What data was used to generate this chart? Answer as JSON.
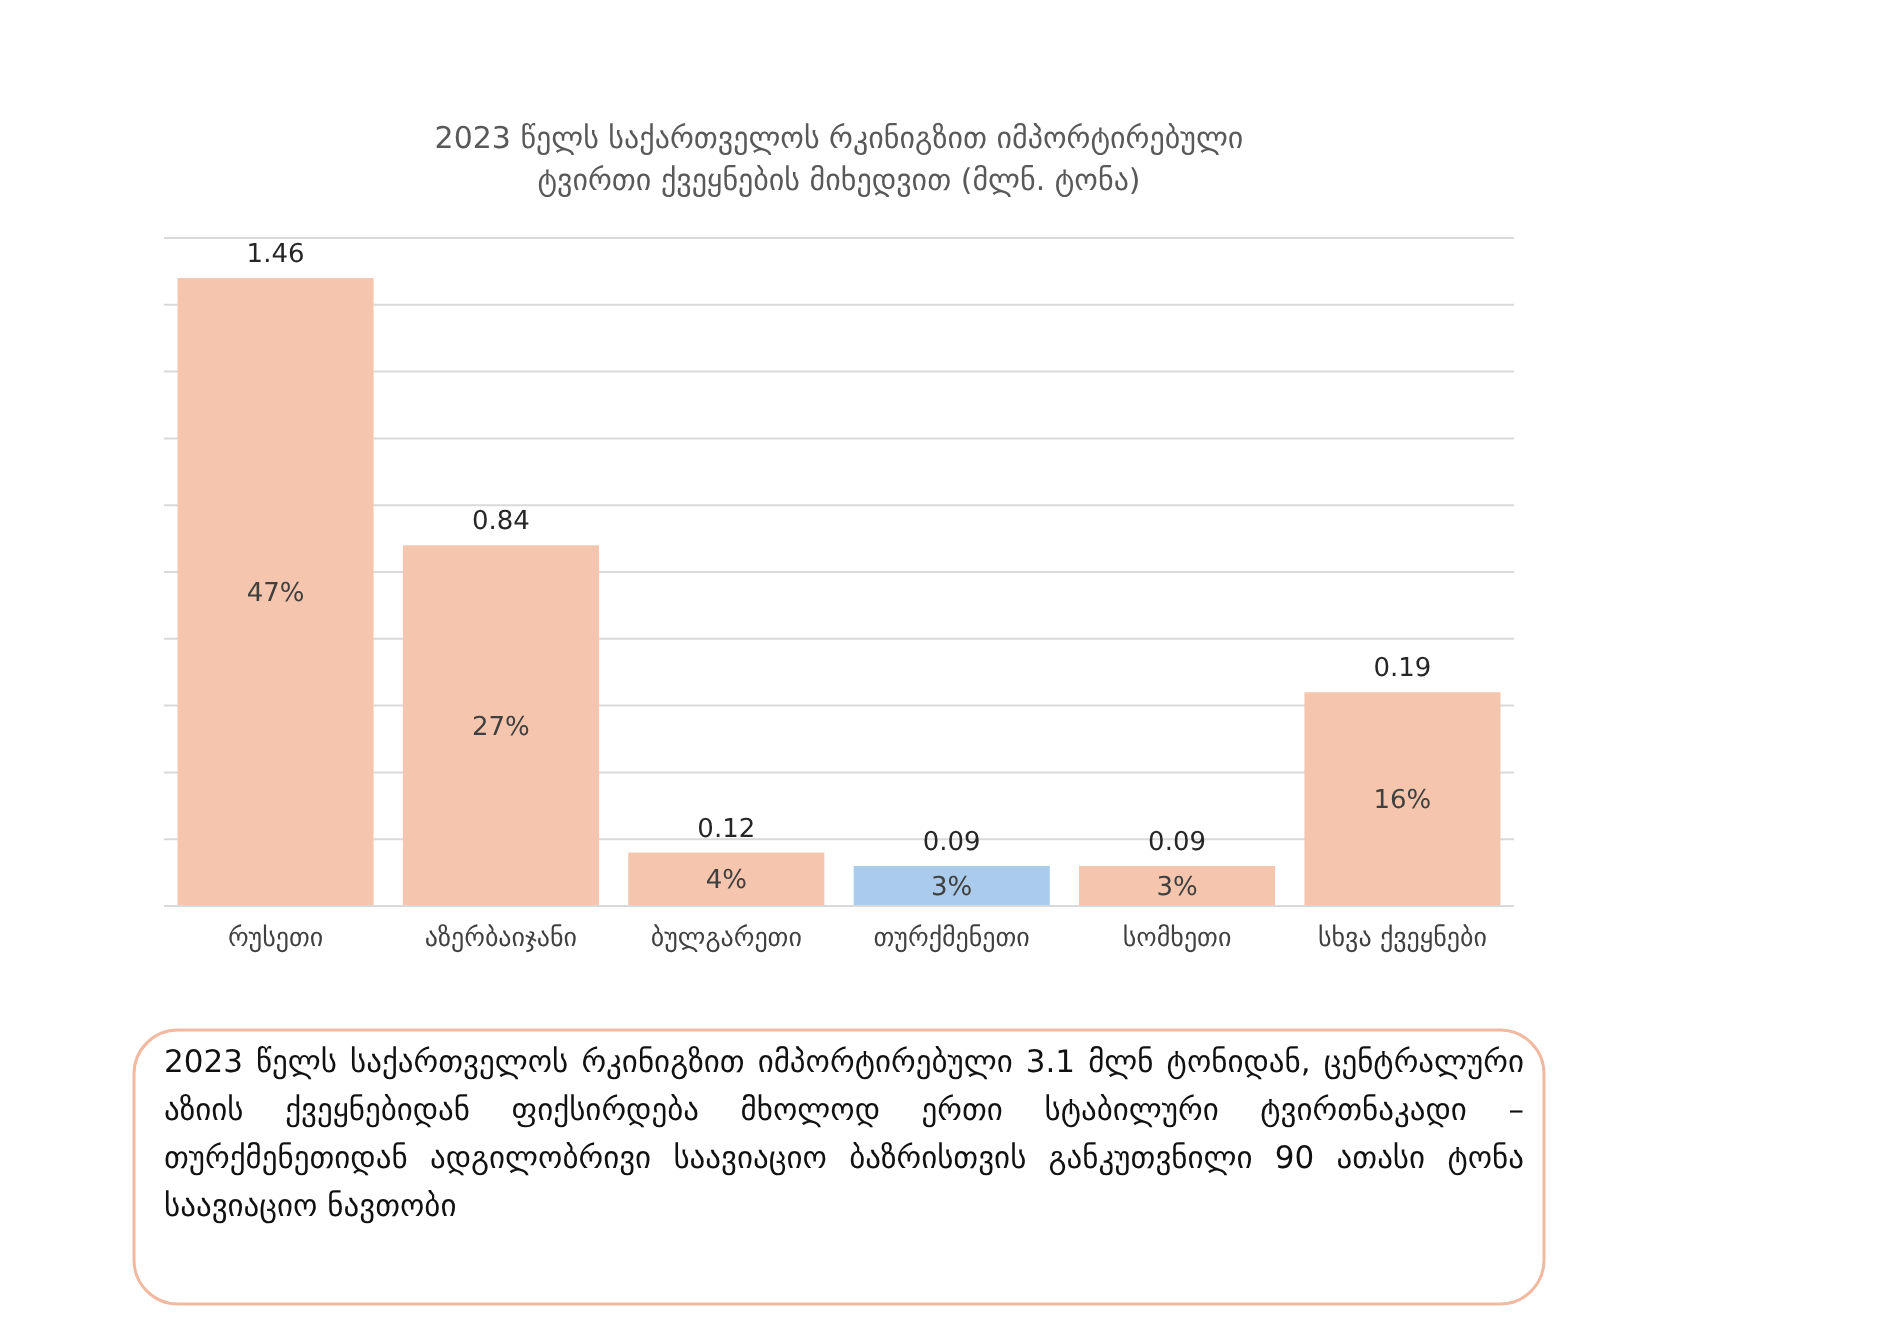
{
  "chart_data": {
    "type": "bar",
    "title": "2023 წელს საქართველოს რკინიგზით იმპორტირებული\nტვირთი ქვეყნების მიხედვით (მლნ. ტონა)",
    "categories": [
      "რუსეთი",
      "აზერბაიჯანი",
      "ბულგარეთი",
      "თურქმენეთი",
      "სომხეთი",
      "სხვა ქვეყნები"
    ],
    "values": [
      47,
      27,
      4,
      3,
      3,
      16
    ],
    "colors": [
      "#f5c6ad",
      "#f5c6ad",
      "#f5c6ad",
      "#aacbeb",
      "#f5c6ad",
      "#f5c6ad"
    ],
    "value_labels": [
      "47%",
      "27%",
      "4%",
      "3%",
      "3%",
      "16%"
    ],
    "ylim": [
      0,
      50
    ],
    "yticks": [
      {
        "value": 0,
        "label": null
      },
      {
        "value": 5,
        "label": null
      },
      {
        "value": 10,
        "label": null
      },
      {
        "value": 15,
        "label": null
      },
      {
        "value": 20,
        "label": null
      },
      {
        "value": 25,
        "label": null
      },
      {
        "value": 30,
        "label": null
      },
      {
        "value": 35,
        "label": null
      },
      {
        "value": 40,
        "label": null
      },
      {
        "value": 45,
        "label": null
      },
      {
        "value": 50,
        "label": null
      }
    ],
    "tick_labels": "x",
    "grid": "y",
    "annotations": [
      {
        "text": "1.46",
        "x": "რუსეთი",
        "y": 47
      },
      {
        "text": "0.84",
        "x": "აზერბაიჯანი",
        "y": 27
      },
      {
        "text": "0.12",
        "x": "ბულგარეთი",
        "y": 4
      },
      {
        "text": "0.09",
        "x": "თურქმენეთი",
        "y": 3
      },
      {
        "text": "0.09",
        "x": "სომხეთი",
        "y": 3
      },
      {
        "text": "0.19",
        "x": "სხვა ქვეყნები",
        "y": 16
      },
      "2023 წელს საქართველოს რკინიგზით იმპორტირებული 3.1 მლნ ტონიდან, ცენტრალური აზიის ქვეყნებიდან ფიქსირდება მხოლოდ ერთი სტაბილური ტვირთნაკადი – თურქმენეთიდან ადგილობრივი საავიაციო ბაზრისთვის განკუთვნილი 90 ათასი ტონა საავიაციო ნავთობი"
    ]
  }
}
